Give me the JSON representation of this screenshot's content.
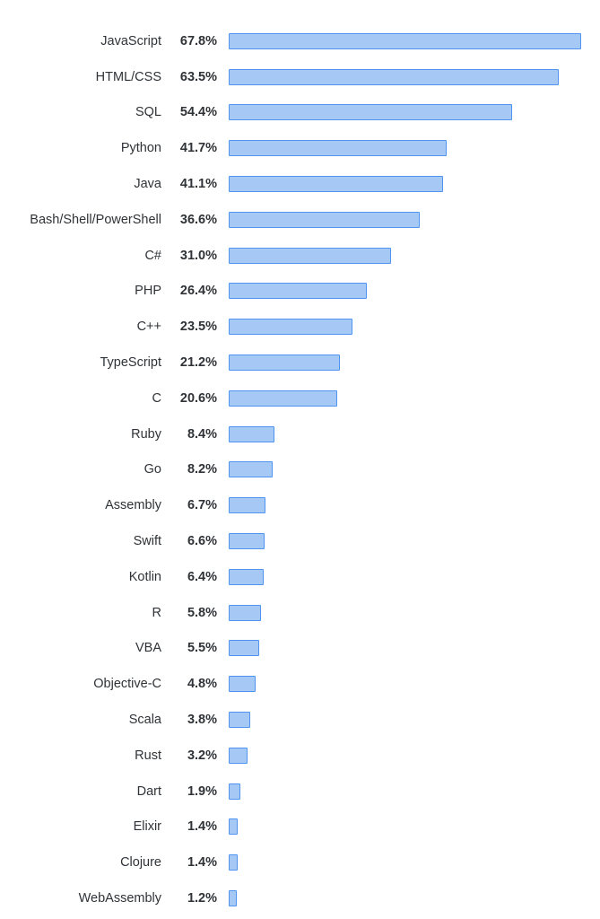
{
  "chart_data": {
    "type": "bar",
    "orientation": "horizontal",
    "title": "",
    "xlabel": "",
    "ylabel": "",
    "xlim": [
      0,
      70
    ],
    "grid": false,
    "legend": "none",
    "value_suffix": "%",
    "bar_fill": "#a6c8f4",
    "bar_border": "#4f94ef",
    "label_color": "#2f3337",
    "categories": [
      "JavaScript",
      "HTML/CSS",
      "SQL",
      "Python",
      "Java",
      "Bash/Shell/PowerShell",
      "C#",
      "PHP",
      "C++",
      "TypeScript",
      "C",
      "Ruby",
      "Go",
      "Assembly",
      "Swift",
      "Kotlin",
      "R",
      "VBA",
      "Objective-C",
      "Scala",
      "Rust",
      "Dart",
      "Elixir",
      "Clojure",
      "WebAssembly"
    ],
    "values": [
      67.8,
      63.5,
      54.4,
      41.7,
      41.1,
      36.6,
      31.0,
      26.4,
      23.5,
      21.2,
      20.6,
      8.4,
      8.2,
      6.7,
      6.6,
      6.4,
      5.8,
      5.5,
      4.8,
      3.8,
      3.2,
      1.9,
      1.4,
      1.4,
      1.2
    ],
    "value_labels": [
      "67.8%",
      "63.5%",
      "54.4%",
      "41.7%",
      "41.1%",
      "36.6%",
      "31.0%",
      "26.4%",
      "23.5%",
      "21.2%",
      "20.6%",
      "8.4%",
      "8.2%",
      "6.7%",
      "6.6%",
      "6.4%",
      "5.8%",
      "5.5%",
      "4.8%",
      "3.8%",
      "3.2%",
      "1.9%",
      "1.4%",
      "1.4%",
      "1.2%"
    ]
  }
}
